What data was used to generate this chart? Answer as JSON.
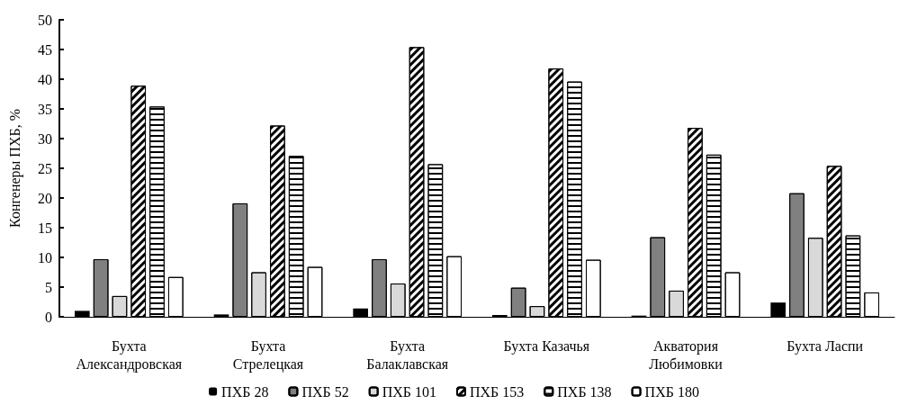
{
  "chart_data": {
    "type": "bar",
    "ylabel": "Конгенеры ПХБ, %",
    "categories": [
      "Бухта\nАлександровская",
      "Бухта\nСтрелецкая",
      "Бухта\nБалаклавская",
      "Бухта Казачья",
      "Акватория\nЛюбимовки",
      "Бухта Ласпи"
    ],
    "series": [
      {
        "name": "ПХБ 28",
        "color": "#000000",
        "values": [
          1.0,
          0.4,
          1.4,
          0.3,
          0.2,
          2.4
        ]
      },
      {
        "name": "ПХБ 52",
        "color": "#808080",
        "values": [
          9.7,
          19.1,
          9.7,
          4.9,
          13.4,
          20.8
        ]
      },
      {
        "name": "ПХБ 101",
        "color": "#d9d9d9",
        "values": [
          3.5,
          7.5,
          5.6,
          1.8,
          4.4,
          13.3
        ]
      },
      {
        "name": "ПХБ 153",
        "color": "#ffffff",
        "values": [
          38.9,
          32.2,
          45.4,
          41.8,
          31.8,
          25.4
        ]
      },
      {
        "name": "ПХБ 138",
        "color": "#ffffff",
        "values": [
          35.4,
          27.1,
          25.7,
          39.6,
          27.3,
          13.7
        ]
      },
      {
        "name": "ПХБ 180",
        "color": "#ffffff",
        "values": [
          6.7,
          8.4,
          10.2,
          9.6,
          7.5,
          4.1
        ]
      }
    ],
    "ylim": [
      0,
      50
    ],
    "yticks": [
      0,
      5,
      10,
      15,
      20,
      25,
      30,
      35,
      40,
      45,
      50
    ],
    "grid": false,
    "legend": "bottom"
  }
}
